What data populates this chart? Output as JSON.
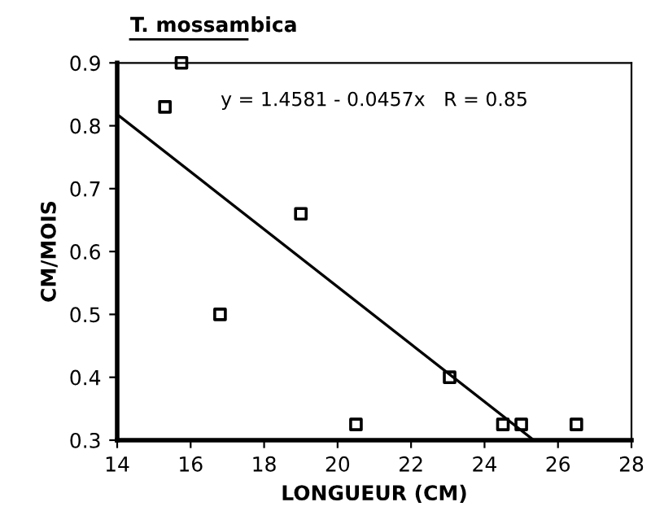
{
  "chart_data": {
    "type": "scatter",
    "title": "T. mossambica",
    "xlabel": "LONGUEUR (CM)",
    "ylabel": "CM/MOIS",
    "annotations": [
      "y = 1.4581 - 0.0457x   R = 0.85"
    ],
    "series": [
      {
        "color": "#000000",
        "marker": "square",
        "x": [
          15.3,
          15.75,
          16.8,
          19.0,
          20.5,
          23.05,
          24.5,
          25.0,
          26.5
        ],
        "values": [
          0.83,
          0.9,
          0.5,
          0.66,
          0.325,
          0.4,
          0.325,
          0.325,
          0.325
        ]
      },
      {
        "type": "line",
        "color": "#000000",
        "marker": "none",
        "x": [
          14,
          25.34
        ],
        "values": [
          0.818,
          0.3
        ]
      }
    ],
    "xlim": [
      14,
      28
    ],
    "xticks": [
      14,
      16,
      18,
      20,
      22,
      24,
      26,
      28
    ],
    "ylim": [
      0.3,
      0.9
    ],
    "yticks": [
      0.3,
      0.4,
      0.5,
      0.6,
      0.7,
      0.8,
      0.9
    ],
    "grid": false,
    "legend": false
  }
}
